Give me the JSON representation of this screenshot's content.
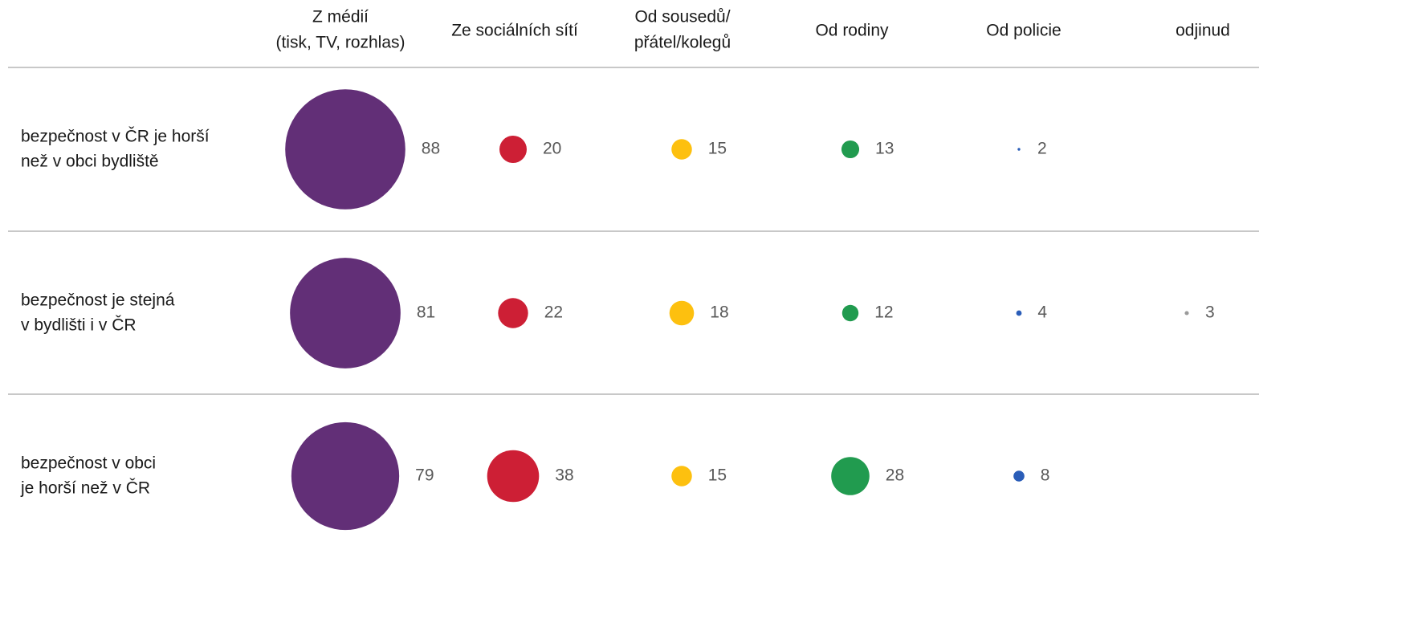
{
  "chart_data": {
    "type": "bubble-matrix",
    "categories": [
      [
        "Z médií",
        "(tisk, TV, rozhlas)"
      ],
      [
        "Ze sociálních sítí"
      ],
      [
        "Od sousedů/",
        "přátel/kolegů"
      ],
      [
        "Od rodiny"
      ],
      [
        "Od policie"
      ],
      [
        "odjinud"
      ]
    ],
    "colors": [
      "#622f77",
      "#cd1f35",
      "#fdc00f",
      "#219b4f",
      "#2a5db8",
      "#9a9a9a"
    ],
    "series": [
      {
        "name": [
          "bezpečnost v ČR je horší",
          "než v obci bydliště"
        ],
        "values": [
          88,
          20,
          15,
          13,
          2,
          null
        ]
      },
      {
        "name": [
          "bezpečnost je stejná",
          "v bydlišti i v ČR"
        ],
        "values": [
          81,
          22,
          18,
          12,
          4,
          3
        ]
      },
      {
        "name": [
          "bezpečnost v obci",
          "je horší než v ČR"
        ],
        "values": [
          79,
          38,
          15,
          28,
          8,
          null
        ]
      }
    ]
  }
}
